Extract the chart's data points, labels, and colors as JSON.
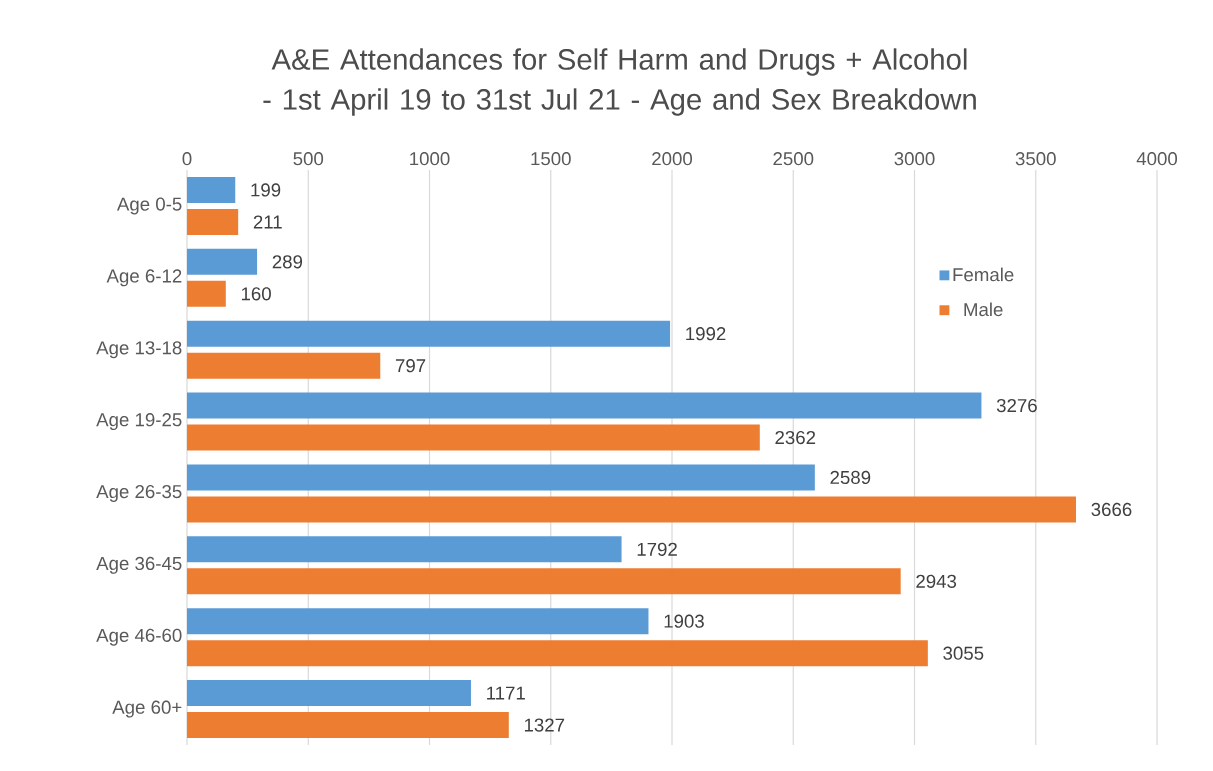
{
  "chart_data": {
    "type": "bar",
    "orientation": "horizontal",
    "title": "A&E Attendances for Self Harm and Drugs + Alcohol - 1st April 19 to 31st Jul 21 - Age and Sex Breakdown",
    "categories": [
      "Age 0-5",
      "Age 6-12",
      "Age 13-18",
      "Age 19-25",
      "Age 26-35",
      "Age 36-45",
      "Age 46-60",
      "Age 60+"
    ],
    "series": [
      {
        "name": "Female",
        "color": "#5b9bd5",
        "values": [
          199,
          289,
          1992,
          3276,
          2589,
          1792,
          1903,
          1171
        ]
      },
      {
        "name": "Male",
        "color": "#ed7d31",
        "values": [
          211,
          160,
          797,
          2362,
          3666,
          2943,
          3055,
          1327
        ]
      }
    ],
    "xlim": [
      0,
      4000
    ],
    "xticks": [
      0,
      500,
      1000,
      1500,
      2000,
      2500,
      3000,
      3500,
      4000
    ],
    "grid": "x",
    "legend": "top right",
    "data_labels": true
  }
}
